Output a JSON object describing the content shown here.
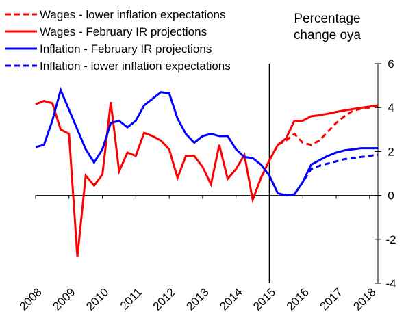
{
  "chart_data": {
    "type": "line",
    "y_axis_title": "Percentage change oya",
    "x": [
      2008,
      2008.25,
      2008.5,
      2008.75,
      2009,
      2009.25,
      2009.5,
      2009.75,
      2010,
      2010.25,
      2010.5,
      2010.75,
      2011,
      2011.25,
      2011.5,
      2011.75,
      2012,
      2012.25,
      2012.5,
      2012.75,
      2013,
      2013.25,
      2013.5,
      2013.75,
      2014,
      2014.25,
      2014.5,
      2014.75,
      2015,
      2015.25,
      2015.5,
      2015.75,
      2016,
      2016.25,
      2016.5,
      2016.75,
      2017,
      2017.25,
      2017.5,
      2017.75,
      2018,
      2018.25
    ],
    "series": [
      {
        "name": "Wages - lower inflation expectations",
        "color": "#ff0000",
        "dashed": true,
        "values": [
          null,
          null,
          null,
          null,
          null,
          null,
          null,
          null,
          null,
          null,
          null,
          null,
          null,
          null,
          null,
          null,
          null,
          null,
          null,
          null,
          null,
          null,
          null,
          null,
          null,
          null,
          null,
          null,
          1.6,
          2.3,
          2.5,
          2.8,
          2.4,
          2.3,
          2.5,
          2.9,
          3.3,
          3.6,
          3.85,
          3.95,
          4.0,
          4.1
        ]
      },
      {
        "name": "Wages - February IR projections",
        "color": "#ff0000",
        "dashed": false,
        "values": [
          4.15,
          4.3,
          4.2,
          3.0,
          2.8,
          -2.8,
          0.9,
          0.45,
          0.95,
          4.25,
          1.1,
          1.95,
          1.8,
          2.85,
          2.7,
          2.5,
          2.1,
          0.8,
          1.8,
          1.8,
          1.3,
          0.5,
          2.3,
          0.75,
          1.2,
          1.85,
          -0.2,
          0.8,
          1.6,
          2.3,
          2.6,
          3.4,
          3.4,
          3.6,
          3.65,
          3.72,
          3.8,
          3.87,
          3.93,
          3.99,
          4.04,
          4.1
        ]
      },
      {
        "name": "Inflation - February IR projections",
        "color": "#0000ff",
        "dashed": false,
        "values": [
          2.2,
          2.3,
          3.4,
          4.8,
          3.9,
          3.0,
          2.1,
          1.5,
          2.1,
          3.3,
          3.4,
          3.1,
          3.4,
          4.1,
          4.4,
          4.7,
          4.65,
          3.5,
          2.8,
          2.4,
          2.7,
          2.8,
          2.7,
          2.7,
          2.1,
          1.75,
          1.7,
          1.4,
          0.9,
          0.1,
          0.0,
          0.05,
          0.6,
          1.4,
          1.6,
          1.8,
          1.95,
          2.05,
          2.1,
          2.15,
          2.15,
          2.15
        ]
      },
      {
        "name": "Inflation - lower inflation expectations",
        "color": "#0000ff",
        "dashed": true,
        "values": [
          null,
          null,
          null,
          null,
          null,
          null,
          null,
          null,
          null,
          null,
          null,
          null,
          null,
          null,
          null,
          null,
          null,
          null,
          null,
          null,
          null,
          null,
          null,
          null,
          null,
          null,
          null,
          null,
          null,
          null,
          null,
          0.05,
          0.6,
          1.2,
          1.35,
          1.45,
          1.55,
          1.65,
          1.7,
          1.75,
          1.8,
          1.85
        ]
      }
    ],
    "xlim": [
      2008,
      2018.25
    ],
    "xticks": [
      2008,
      2009,
      2010,
      2011,
      2012,
      2013,
      2014,
      2015,
      2016,
      2017,
      2018
    ],
    "ylim": [
      -4,
      6
    ],
    "yticks": [
      -4,
      -2,
      0,
      2,
      4,
      6
    ],
    "vline": 2015,
    "legend": "top-left"
  }
}
